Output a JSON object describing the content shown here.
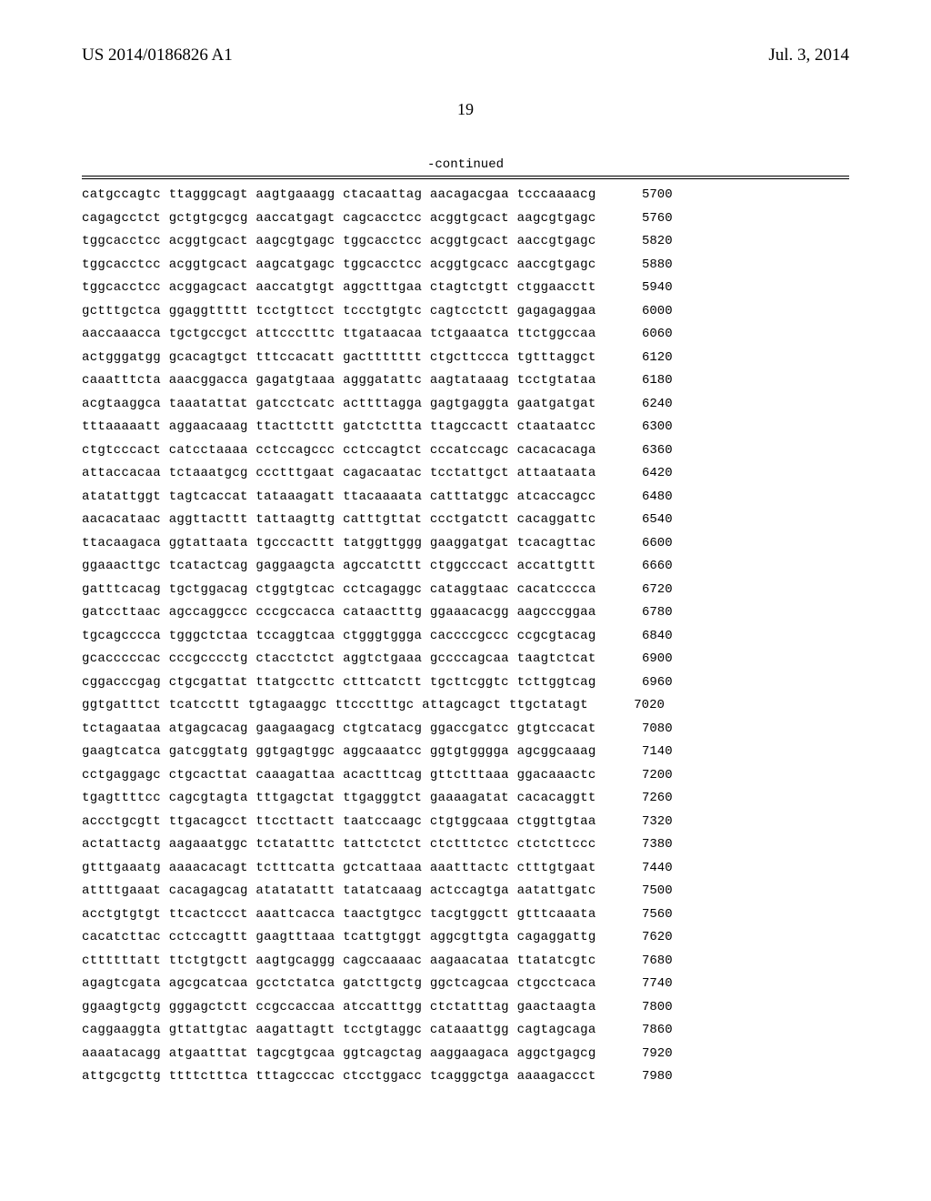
{
  "header": {
    "publication_number": "US 2014/0186826 A1",
    "publication_date": "Jul. 3, 2014"
  },
  "page_number": "19",
  "continued_label": "-continued",
  "sequence": {
    "rows": [
      {
        "groups": [
          "catgccagtc",
          "ttagggcagt",
          "aagtgaaagg",
          "ctacaattag",
          "aacagacgaa",
          "tcccaaaacg"
        ],
        "pos": "5700"
      },
      {
        "groups": [
          "cagagcctct",
          "gctgtgcgcg",
          "aaccatgagt",
          "cagcacctcc",
          "acggtgcact",
          "aagcgtgagc"
        ],
        "pos": "5760"
      },
      {
        "groups": [
          "tggcacctcc",
          "acggtgcact",
          "aagcgtgagc",
          "tggcacctcc",
          "acggtgcact",
          "aaccgtgagc"
        ],
        "pos": "5820"
      },
      {
        "groups": [
          "tggcacctcc",
          "acggtgcact",
          "aagcatgagc",
          "tggcacctcc",
          "acggtgcacc",
          "aaccgtgagc"
        ],
        "pos": "5880"
      },
      {
        "groups": [
          "tggcacctcc",
          "acggagcact",
          "aaccatgtgt",
          "aggctttgaa",
          "ctagtctgtt",
          "ctggaacctt"
        ],
        "pos": "5940"
      },
      {
        "groups": [
          "gctttgctca",
          "ggaggttttt",
          "tcctgttcct",
          "tccctgtgtc",
          "cagtcctctt",
          "gagagaggaa"
        ],
        "pos": "6000"
      },
      {
        "groups": [
          "aaccaaacca",
          "tgctgccgct",
          "attccctttc",
          "ttgataacaa",
          "tctgaaatca",
          "ttctggccaa"
        ],
        "pos": "6060"
      },
      {
        "groups": [
          "actgggatgg",
          "gcacagtgct",
          "tttccacatt",
          "gacttttttt",
          "ctgcttccca",
          "tgtttaggct"
        ],
        "pos": "6120"
      },
      {
        "groups": [
          "caaatttcta",
          "aaacggacca",
          "gagatgtaaa",
          "agggatattc",
          "aagtataaag",
          "tcctgtataa"
        ],
        "pos": "6180"
      },
      {
        "groups": [
          "acgtaaggca",
          "taaatattat",
          "gatcctcatc",
          "acttttagga",
          "gagtgaggta",
          "gaatgatgat"
        ],
        "pos": "6240"
      },
      {
        "groups": [
          "tttaaaaatt",
          "aggaacaaag",
          "ttacttcttt",
          "gatctcttta",
          "ttagccactt",
          "ctaataatcc"
        ],
        "pos": "6300"
      },
      {
        "groups": [
          "ctgtcccact",
          "catcctaaaa",
          "cctccagccc",
          "cctccagtct",
          "cccatccagc",
          "cacacacaga"
        ],
        "pos": "6360"
      },
      {
        "groups": [
          "attaccacaa",
          "tctaaatgcg",
          "ccctttgaat",
          "cagacaatac",
          "tcctattgct",
          "attaataata"
        ],
        "pos": "6420"
      },
      {
        "groups": [
          "atatattggt",
          "tagtcaccat",
          "tataaagatt",
          "ttacaaaata",
          "catttatggc",
          "atcaccagcc"
        ],
        "pos": "6480"
      },
      {
        "groups": [
          "aacacataac",
          "aggttacttt",
          "tattaagttg",
          "catttgttat",
          "ccctgatctt",
          "cacaggattc"
        ],
        "pos": "6540"
      },
      {
        "groups": [
          "ttacaagaca",
          "ggtattaata",
          "tgcccacttt",
          "tatggttggg",
          "gaaggatgat",
          "tcacagttac"
        ],
        "pos": "6600"
      },
      {
        "groups": [
          "ggaaacttgc",
          "tcatactcag",
          "gaggaagcta",
          "agccatcttt",
          "ctggcccact",
          "accattgttt"
        ],
        "pos": "6660"
      },
      {
        "groups": [
          "gatttcacag",
          "tgctggacag",
          "ctggtgtcac",
          "cctcagaggc",
          "cataggtaac",
          "cacatcccca"
        ],
        "pos": "6720"
      },
      {
        "groups": [
          "gatccttaac",
          "agccaggccc",
          "cccgccacca",
          "cataactttg",
          "ggaaacacgg",
          "aagcccggaa"
        ],
        "pos": "6780"
      },
      {
        "groups": [
          "tgcagcccca",
          "tgggctctaa",
          "tccaggtcaa",
          "ctgggtggga",
          "caccccgccc",
          "ccgcgtacag"
        ],
        "pos": "6840"
      },
      {
        "groups": [
          "gcacccccac",
          "cccgcccctg",
          "ctacctctct",
          "aggtctgaaa",
          "gccccagcaa",
          "taagtctcat"
        ],
        "pos": "6900"
      },
      {
        "groups": [
          "cggacccgag",
          "ctgcgattat",
          "ttatgccttc",
          "ctttcatctt",
          "tgcttcggtc",
          "tcttggtcag"
        ],
        "pos": "6960"
      },
      {
        "groups": [
          "ggtgatttct",
          "tcatccttt",
          "tgtagaaggc",
          "ttccctttgc",
          "attagcagct",
          "ttgctatagt"
        ],
        "pos": "7020"
      },
      {
        "groups": [
          "tctagaataa",
          "atgagcacag",
          "gaagaagacg",
          "ctgtcatacg",
          "ggaccgatcc",
          "gtgtccacat"
        ],
        "pos": "7080"
      },
      {
        "groups": [
          "gaagtcatca",
          "gatcggtatg",
          "ggtgagtggc",
          "aggcaaatcc",
          "ggtgtgggga",
          "agcggcaaag"
        ],
        "pos": "7140"
      },
      {
        "groups": [
          "cctgaggagc",
          "ctgcacttat",
          "caaagattaa",
          "acactttcag",
          "gttctttaaa",
          "ggacaaactc"
        ],
        "pos": "7200"
      },
      {
        "groups": [
          "tgagttttcc",
          "cagcgtagta",
          "tttgagctat",
          "ttgagggtct",
          "gaaaagatat",
          "cacacaggtt"
        ],
        "pos": "7260"
      },
      {
        "groups": [
          "accctgcgtt",
          "ttgacagcct",
          "ttccttactt",
          "taatccaagc",
          "ctgtggcaaa",
          "ctggttgtaa"
        ],
        "pos": "7320"
      },
      {
        "groups": [
          "actattactg",
          "aagaaatggc",
          "tctatatttc",
          "tattctctct",
          "ctctttctcc",
          "ctctcttccc"
        ],
        "pos": "7380"
      },
      {
        "groups": [
          "gtttgaaatg",
          "aaaacacagt",
          "tctttcatta",
          "gctcattaaa",
          "aaatttactc",
          "ctttgtgaat"
        ],
        "pos": "7440"
      },
      {
        "groups": [
          "attttgaaat",
          "cacagagcag",
          "atatatattt",
          "tatatcaaag",
          "actccagtga",
          "aatattgatc"
        ],
        "pos": "7500"
      },
      {
        "groups": [
          "acctgtgtgt",
          "ttcactccct",
          "aaattcacca",
          "taactgtgcc",
          "tacgtggctt",
          "gtttcaaata"
        ],
        "pos": "7560"
      },
      {
        "groups": [
          "cacatcttac",
          "cctccagttt",
          "gaagtttaaa",
          "tcattgtggt",
          "aggcgttgta",
          "cagaggattg"
        ],
        "pos": "7620"
      },
      {
        "groups": [
          "cttttttatt",
          "ttctgtgctt",
          "aagtgcaggg",
          "cagccaaaac",
          "aagaacataa",
          "ttatatcgtc"
        ],
        "pos": "7680"
      },
      {
        "groups": [
          "agagtcgata",
          "agcgcatcaa",
          "gcctctatca",
          "gatcttgctg",
          "ggctcagcaa",
          "ctgcctcaca"
        ],
        "pos": "7740"
      },
      {
        "groups": [
          "ggaagtgctg",
          "gggagctctt",
          "ccgccaccaa",
          "atccatttgg",
          "ctctatttag",
          "gaactaagta"
        ],
        "pos": "7800"
      },
      {
        "groups": [
          "caggaaggta",
          "gttattgtac",
          "aagattagtt",
          "tcctgtaggc",
          "cataaattgg",
          "cagtagcaga"
        ],
        "pos": "7860"
      },
      {
        "groups": [
          "aaaatacagg",
          "atgaatttat",
          "tagcgtgcaa",
          "ggtcagctag",
          "aaggaagaca",
          "aggctgagcg"
        ],
        "pos": "7920"
      },
      {
        "groups": [
          "attgcgcttg",
          "ttttctttca",
          "tttagcccac",
          "ctcctggacc",
          "tcagggctga",
          "aaaagaccct"
        ],
        "pos": "7980"
      }
    ]
  },
  "style": {
    "font_mono": "Courier New",
    "font_serif": "Times New Roman",
    "text_color": "#000000",
    "background": "#ffffff",
    "seq_fontsize": 14,
    "header_fontsize": 19,
    "pagenum_fontsize": 18
  }
}
